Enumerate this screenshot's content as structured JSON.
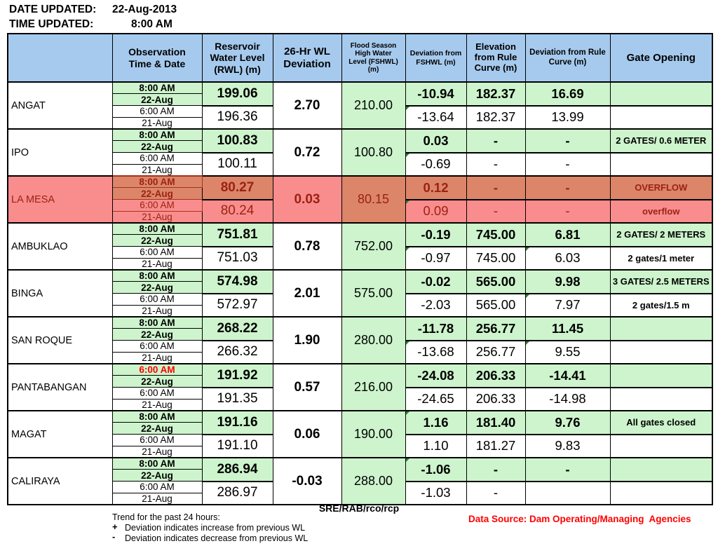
{
  "meta": {
    "date_label": "DATE UPDATED:",
    "date_value": "22-Aug-2013",
    "time_label": "TIME UPDATED:",
    "time_value": "8:00 AM"
  },
  "colors": {
    "header_bg": "#a6caee",
    "green_cell": "#cdf4cc",
    "alert_dark": "#dc8569",
    "alert_light": "#f98d8d",
    "alert_text": "#9b2213",
    "warning_text": "#ff0000",
    "border": "#000000"
  },
  "table": {
    "headers": {
      "dam": "",
      "observation": "Observation Time & Date",
      "rwl": "Reservoir Water Level (RWL) (m)",
      "dev26": "26-Hr WL Deviation",
      "fshwl": "Flood Season High Water Level (FSHWL) (m)",
      "dev_fshwl": "Deviation from FSHWL (m)",
      "elev_rule": "Elevation from Rule Curve (m)",
      "dev_rule": "Deviation from Rule Curve (m)",
      "gate": "Gate Opening"
    },
    "rows": [
      {
        "dam": "ANGAT",
        "obs": [
          "8:00 AM",
          "22-Aug",
          "6:00 AM",
          "21-Aug"
        ],
        "rwl": [
          "199.06",
          "196.36"
        ],
        "dev26": "2.70",
        "fshwl": "210.00",
        "dev_fshwl": [
          "-10.94",
          "-13.64"
        ],
        "elev_rule": [
          "182.37",
          "182.37"
        ],
        "dev_rule": [
          "16.69",
          "13.99"
        ],
        "gate": [
          "",
          ""
        ],
        "highlight": "normal",
        "markers": [
          "dev_fshwl:1"
        ]
      },
      {
        "dam": "IPO",
        "obs": [
          "8:00 AM",
          "22-Aug",
          "6:00 AM",
          "21-Aug"
        ],
        "rwl": [
          "100.83",
          "100.11"
        ],
        "dev26": "0.72",
        "fshwl": "100.80",
        "dev_fshwl": [
          "0.03",
          "-0.69"
        ],
        "elev_rule": [
          "-",
          "-"
        ],
        "dev_rule": [
          "-",
          "-"
        ],
        "gate": [
          "2 GATES/ 0.6 METER",
          ""
        ],
        "highlight": "normal",
        "markers": [
          "dev_fshwl:1"
        ]
      },
      {
        "dam": "LA MESA",
        "obs": [
          "8:00 AM",
          "22-Aug",
          "6:00 AM",
          "21-Aug"
        ],
        "rwl": [
          "80.27",
          "80.24"
        ],
        "dev26": "0.03",
        "fshwl": "80.15",
        "dev_fshwl": [
          "0.12",
          "0.09"
        ],
        "elev_rule": [
          "-",
          "-"
        ],
        "dev_rule": [
          "-",
          "-"
        ],
        "gate": [
          "OVERFLOW",
          "overflow"
        ],
        "highlight": "alert",
        "markers": [
          "dev_fshwl:1"
        ]
      },
      {
        "dam": "AMBUKLAO",
        "obs": [
          "8:00 AM",
          "22-Aug",
          "6:00 AM",
          "21-Aug"
        ],
        "rwl": [
          "751.81",
          "751.03"
        ],
        "dev26": "0.78",
        "fshwl": "752.00",
        "dev_fshwl": [
          "-0.19",
          "-0.97"
        ],
        "elev_rule": [
          "745.00",
          "745.00"
        ],
        "dev_rule": [
          "6.81",
          "6.03"
        ],
        "gate": [
          "2 GATES/ 2 METERS",
          "2 gates/1 meter"
        ],
        "highlight": "normal",
        "markers": [
          "dev_fshwl:1",
          "dev_rule:1"
        ]
      },
      {
        "dam": "BINGA",
        "obs": [
          "8:00 AM",
          "22-Aug",
          "6:00 AM",
          "21-Aug"
        ],
        "rwl": [
          "574.98",
          "572.97"
        ],
        "dev26": "2.01",
        "fshwl": "575.00",
        "dev_fshwl": [
          "-0.02",
          "-2.03"
        ],
        "elev_rule": [
          "565.00",
          "565.00"
        ],
        "dev_rule": [
          "9.98",
          "7.97"
        ],
        "gate": [
          "3 GATES/ 2.5 METERS",
          "2 gates/1.5 m"
        ],
        "highlight": "normal",
        "markers": [
          "dev_rule:1"
        ]
      },
      {
        "dam": "SAN ROQUE",
        "obs": [
          "8:00 AM",
          "22-Aug",
          "6:00 AM",
          "21-Aug"
        ],
        "rwl": [
          "268.22",
          "266.32"
        ],
        "dev26": "1.90",
        "fshwl": "280.00",
        "dev_fshwl": [
          "-11.78",
          "-13.68"
        ],
        "elev_rule": [
          "256.77",
          "256.77"
        ],
        "dev_rule": [
          "11.45",
          "9.55"
        ],
        "gate": [
          "",
          ""
        ],
        "highlight": "normal",
        "markers": [
          "dev_fshwl:1",
          "dev_rule:1"
        ]
      },
      {
        "dam": "PANTABANGAN",
        "obs": [
          "6:00 AM",
          "22-Aug",
          "6:00 AM",
          "21-Aug"
        ],
        "rwl": [
          "191.92",
          "191.35"
        ],
        "dev26": "0.57",
        "fshwl": "216.00",
        "dev_fshwl": [
          "-24.08",
          "-24.65"
        ],
        "elev_rule": [
          "206.33",
          "206.33"
        ],
        "dev_rule": [
          "-14.41",
          "-14.98"
        ],
        "gate": [
          "",
          ""
        ],
        "highlight": "normal",
        "obs_red_index": 0,
        "markers": []
      },
      {
        "dam": "MAGAT",
        "obs": [
          "8:00 AM",
          "22-Aug",
          "6:00 AM",
          "21-Aug"
        ],
        "rwl": [
          "191.16",
          "191.10"
        ],
        "dev26": "0.06",
        "fshwl": "190.00",
        "dev_fshwl": [
          "1.16",
          "1.10"
        ],
        "elev_rule": [
          "181.40",
          "181.27"
        ],
        "dev_rule": [
          "9.76",
          "9.83"
        ],
        "gate": [
          "All gates closed",
          ""
        ],
        "highlight": "normal",
        "markers": [
          "dev_fshwl:0"
        ]
      },
      {
        "dam": "CALIRAYA",
        "obs": [
          "8:00 AM",
          "22-Aug",
          "6:00 AM",
          "21-Aug"
        ],
        "rwl": [
          "286.94",
          "286.97"
        ],
        "dev26": "-0.03",
        "fshwl": "288.00",
        "dev_fshwl": [
          "-1.06",
          "-1.03"
        ],
        "elev_rule": [
          "-",
          "-"
        ],
        "dev_rule": [
          "-",
          ""
        ],
        "gate": [
          "",
          ""
        ],
        "highlight": "normal",
        "markers": [
          "dev_fshwl:0"
        ]
      }
    ]
  },
  "footer": {
    "sre": "SRE/RAB/rco/rcp",
    "trend_title": "Trend for the past 24 hours:",
    "plus_mark": "+",
    "plus_text": "Deviation indicates increase from previous WL",
    "minus_mark": "-",
    "minus_text": "Deviation indicates decrease from previous WL",
    "datasource": "Data Source: Dam Operating/Managing  Agencies"
  }
}
